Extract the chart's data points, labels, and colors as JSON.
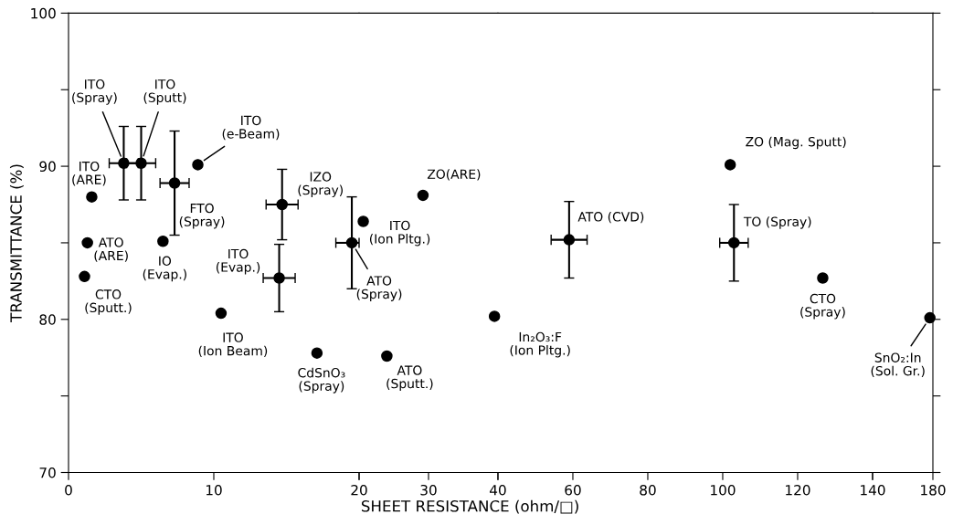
{
  "chart_data": [
    {
      "type": "scatter",
      "ylabel": "TRANSMITTANCE (%)",
      "marker": "circle",
      "x": [
        3.8,
        5.0,
        7.3,
        8.9,
        1.6,
        1.3,
        1.1,
        6.5,
        10.5,
        14.7,
        14.5,
        17.1,
        19.5
      ],
      "series": [
        {
          "color": "#000000",
          "values": [
            90.2,
            90.2,
            88.9,
            90.1,
            88.0,
            85.0,
            82.8,
            85.1,
            80.4,
            87.5,
            82.7,
            77.8,
            85.0
          ],
          "errors": [
            2.4,
            2.4,
            3.4,
            null,
            null,
            null,
            null,
            null,
            null,
            2.3,
            2.2,
            null,
            3.0
          ],
          "xerrors": [
            1.0,
            1.0,
            1.0,
            null,
            null,
            null,
            null,
            null,
            null,
            1.1,
            1.1,
            null,
            [
              18.4,
              20.0
            ]
          ]
        }
      ],
      "xlim": [
        0,
        20
      ],
      "xticks": [
        0,
        10,
        {
          "value": 20,
          "label": null
        }
      ],
      "ylim": [
        70,
        100
      ],
      "yticks": [
        70,
        {
          "value": 75,
          "label": null
        },
        80,
        {
          "value": 85,
          "label": null
        },
        90,
        {
          "value": 95,
          "label": null
        },
        100
      ],
      "annotations": [
        {
          "text": "ITO\n(Spray)",
          "x": 3.8,
          "y": 90.2
        },
        {
          "text": "ITO\n(Sputt)",
          "x": 5.0,
          "y": 90.2
        },
        {
          "text": "FTO\n(Spray)",
          "x": 7.3,
          "y": 88.9
        },
        {
          "text": "ITO\n(e-Beam)",
          "x": 8.9,
          "y": 90.1
        },
        {
          "text": "ITO\n(ARE)",
          "x": 1.6,
          "y": 88.0
        },
        {
          "text": "ATO\n(ARE)",
          "x": 1.3,
          "y": 85.0
        },
        {
          "text": "CTO\n(Sputt.)",
          "x": 1.1,
          "y": 82.8
        },
        {
          "text": "IO\n(Evap.)",
          "x": 6.5,
          "y": 85.1
        },
        {
          "text": "ITO\n(Ion Beam)",
          "x": 10.5,
          "y": 80.4
        },
        {
          "text": "IZO\n(Spray)",
          "x": 14.7,
          "y": 87.5
        },
        {
          "text": "ITO\n(Evap.)",
          "x": 14.5,
          "y": 82.7
        },
        {
          "text": "CdSnO₃\n(Spray)",
          "x": 17.1,
          "y": 77.8
        },
        {
          "text": "ATO\n(Spray)",
          "x": 19.5,
          "y": 85.0
        }
      ]
    },
    {
      "type": "scatter",
      "xlabel": "SHEET RESISTANCE (ohm/□)",
      "marker": "circle",
      "tick_labels": "x",
      "x": [
        20.6,
        29.2,
        24,
        39.5
      ],
      "series": [
        {
          "color": "#000000",
          "values": [
            86.4,
            88.1,
            77.6,
            80.2
          ]
        }
      ],
      "xlim": [
        20,
        40
      ],
      "xticks": [
        20,
        30,
        40
      ],
      "ylim": [
        70,
        100
      ],
      "annotations": [
        {
          "text": "ITO\n(Ion Pltg.)",
          "x": 20.6,
          "y": 86.4
        },
        {
          "text": "ZO(ARE)",
          "x": 29.2,
          "y": 88.1
        },
        {
          "text": "ATO\n(Sputt.)",
          "x": 24,
          "y": 77.6
        },
        {
          "text": "In₂O₃:F\n(Ion Pltg.)",
          "x": 39.5,
          "y": 80.2
        }
      ]
    },
    {
      "type": "scatter",
      "marker": "circle",
      "tick_labels": "x",
      "x": [
        59,
        102,
        103,
        126.7
      ],
      "series": [
        {
          "color": "#000000",
          "values": [
            85.2,
            90.1,
            85.0,
            82.7
          ],
          "errors": [
            2.5,
            null,
            2.5,
            null
          ],
          "xerrors": [
            4.8,
            null,
            3.8,
            null
          ]
        }
      ],
      "xlim": [
        40,
        140
      ],
      "xticks": [
        {
          "value": 40,
          "label": null
        },
        60,
        80,
        100,
        120,
        {
          "value": 140,
          "label": null
        }
      ],
      "ylim": [
        70,
        100
      ],
      "annotations": [
        {
          "text": "ATO (CVD)",
          "x": 59,
          "y": 85.2
        },
        {
          "text": "ZO (Mag. Sputt)",
          "x": 102,
          "y": 90.1
        },
        {
          "text": "TO (Spray)",
          "x": 103,
          "y": 85.0
        },
        {
          "text": "CTO\n(Spray)",
          "x": 126.7,
          "y": 82.7
        }
      ]
    },
    {
      "type": "scatter",
      "marker": "circle",
      "tick_labels": "x",
      "x": [
        178
      ],
      "series": [
        {
          "color": "#000000",
          "values": [
            80.1
          ]
        }
      ],
      "xlim": [
        140,
        180
      ],
      "xticks": [
        140,
        180
      ],
      "ylim": [
        70,
        100
      ],
      "yticks": [
        70,
        {
          "value": 75,
          "label": null
        },
        80,
        {
          "value": 85,
          "label": null
        },
        90,
        {
          "value": 95,
          "label": null
        },
        100
      ],
      "annotations": [
        {
          "text": "SnO₂:In\n(Sol. Gr.)",
          "x": 178,
          "y": 80.1
        }
      ]
    }
  ]
}
